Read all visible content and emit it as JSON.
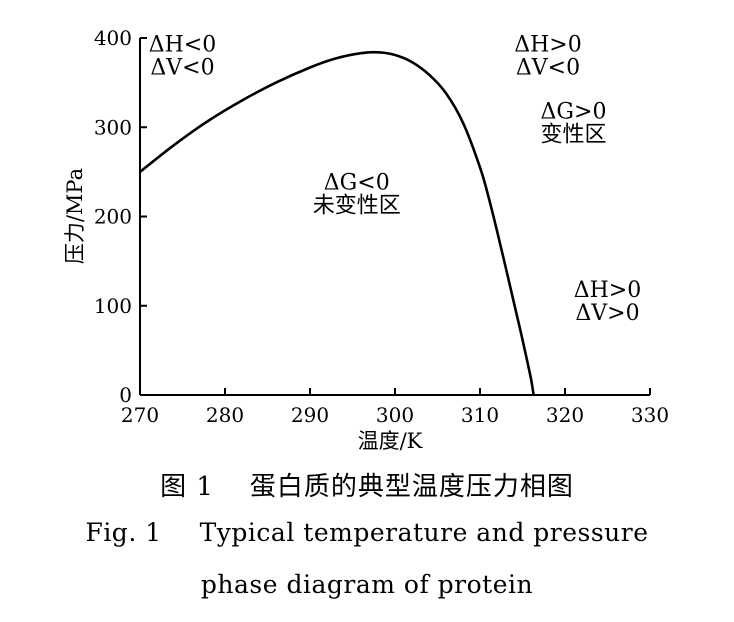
{
  "chart_data": {
    "type": "line",
    "xlabel": "温度/K",
    "ylabel": "压力/MPa",
    "xlim": [
      270,
      330
    ],
    "ylim": [
      0,
      400
    ],
    "x_ticks": [
      "270",
      "280",
      "290",
      "300",
      "310",
      "320",
      "330"
    ],
    "y_ticks": [
      "0",
      "100",
      "200",
      "300",
      "400"
    ],
    "grid": false,
    "series": [
      {
        "x": [
          270,
          274,
          278,
          282,
          286,
          290,
          293,
          296,
          298,
          300,
          302,
          304,
          306,
          308,
          310,
          311,
          312,
          313,
          314,
          315,
          316,
          316.3
        ],
        "y": [
          250,
          280,
          307,
          330,
          350,
          367,
          377,
          383,
          384,
          381,
          373,
          359,
          338,
          305,
          255,
          222,
          184,
          144,
          103,
          62,
          18,
          0
        ]
      }
    ],
    "annotations": [
      {
        "lines": [
          "ΔH<0",
          "ΔV<0"
        ],
        "x": 275,
        "y": 385
      },
      {
        "lines": [
          "ΔH>0",
          "ΔV<0"
        ],
        "x": 318,
        "y": 385
      },
      {
        "lines": [
          "ΔG>0",
          "变性区"
        ],
        "x": 321,
        "y": 310
      },
      {
        "lines": [
          "ΔG<0",
          "未变性区"
        ],
        "x": 295.5,
        "y": 230
      },
      {
        "lines": [
          "ΔH>0",
          "ΔV>0"
        ],
        "x": 325,
        "y": 110
      }
    ]
  },
  "caption": {
    "cn_num": "图 1",
    "cn_text": "蛋白质的典型温度压力相图",
    "en_num": "Fig. 1",
    "en_line1": "Typical temperature and pressure",
    "en_line2": "phase diagram of protein"
  }
}
